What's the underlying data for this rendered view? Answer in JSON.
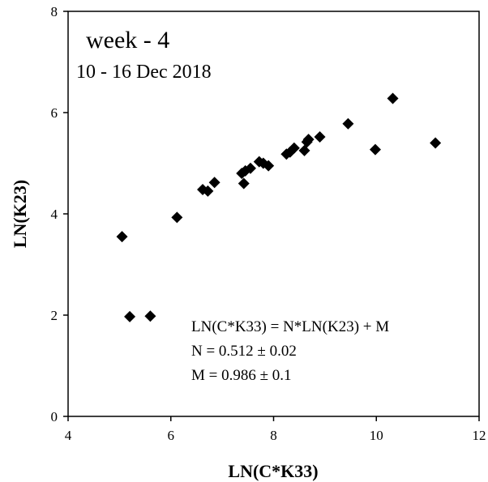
{
  "chart_data": {
    "type": "scatter",
    "title": "",
    "xlabel": "LN(C*K33)",
    "ylabel": "LN(K23)",
    "xlim": [
      4,
      12
    ],
    "ylim": [
      0,
      8
    ],
    "x_ticks": [
      4,
      6,
      8,
      10,
      12
    ],
    "y_ticks": [
      0,
      2,
      4,
      6,
      8
    ],
    "grid": false,
    "marker": "diamond",
    "marker_color": "#000000",
    "annotations": {
      "week": "week - 4",
      "dates": "10 - 16 Dec 2018",
      "equation": "LN(C*K33) = N*LN(K23)  +  M",
      "n_value": "N = 0.512 ± 0.02",
      "m_value": "M = 0.986 ± 0.1"
    },
    "points": [
      {
        "x": 5.05,
        "y": 3.55
      },
      {
        "x": 5.2,
        "y": 1.97
      },
      {
        "x": 5.6,
        "y": 1.98
      },
      {
        "x": 6.12,
        "y": 3.93
      },
      {
        "x": 6.62,
        "y": 4.48
      },
      {
        "x": 6.72,
        "y": 4.45
      },
      {
        "x": 6.85,
        "y": 4.62
      },
      {
        "x": 7.38,
        "y": 4.8
      },
      {
        "x": 7.42,
        "y": 4.6
      },
      {
        "x": 7.45,
        "y": 4.85
      },
      {
        "x": 7.55,
        "y": 4.9
      },
      {
        "x": 7.72,
        "y": 5.03
      },
      {
        "x": 7.8,
        "y": 5.0
      },
      {
        "x": 7.9,
        "y": 4.95
      },
      {
        "x": 8.25,
        "y": 5.18
      },
      {
        "x": 8.32,
        "y": 5.22
      },
      {
        "x": 8.4,
        "y": 5.3
      },
      {
        "x": 8.6,
        "y": 5.25
      },
      {
        "x": 8.65,
        "y": 5.42
      },
      {
        "x": 8.68,
        "y": 5.47
      },
      {
        "x": 8.9,
        "y": 5.52
      },
      {
        "x": 9.45,
        "y": 5.78
      },
      {
        "x": 9.98,
        "y": 5.27
      },
      {
        "x": 10.32,
        "y": 6.28
      },
      {
        "x": 11.15,
        "y": 5.4
      }
    ]
  }
}
